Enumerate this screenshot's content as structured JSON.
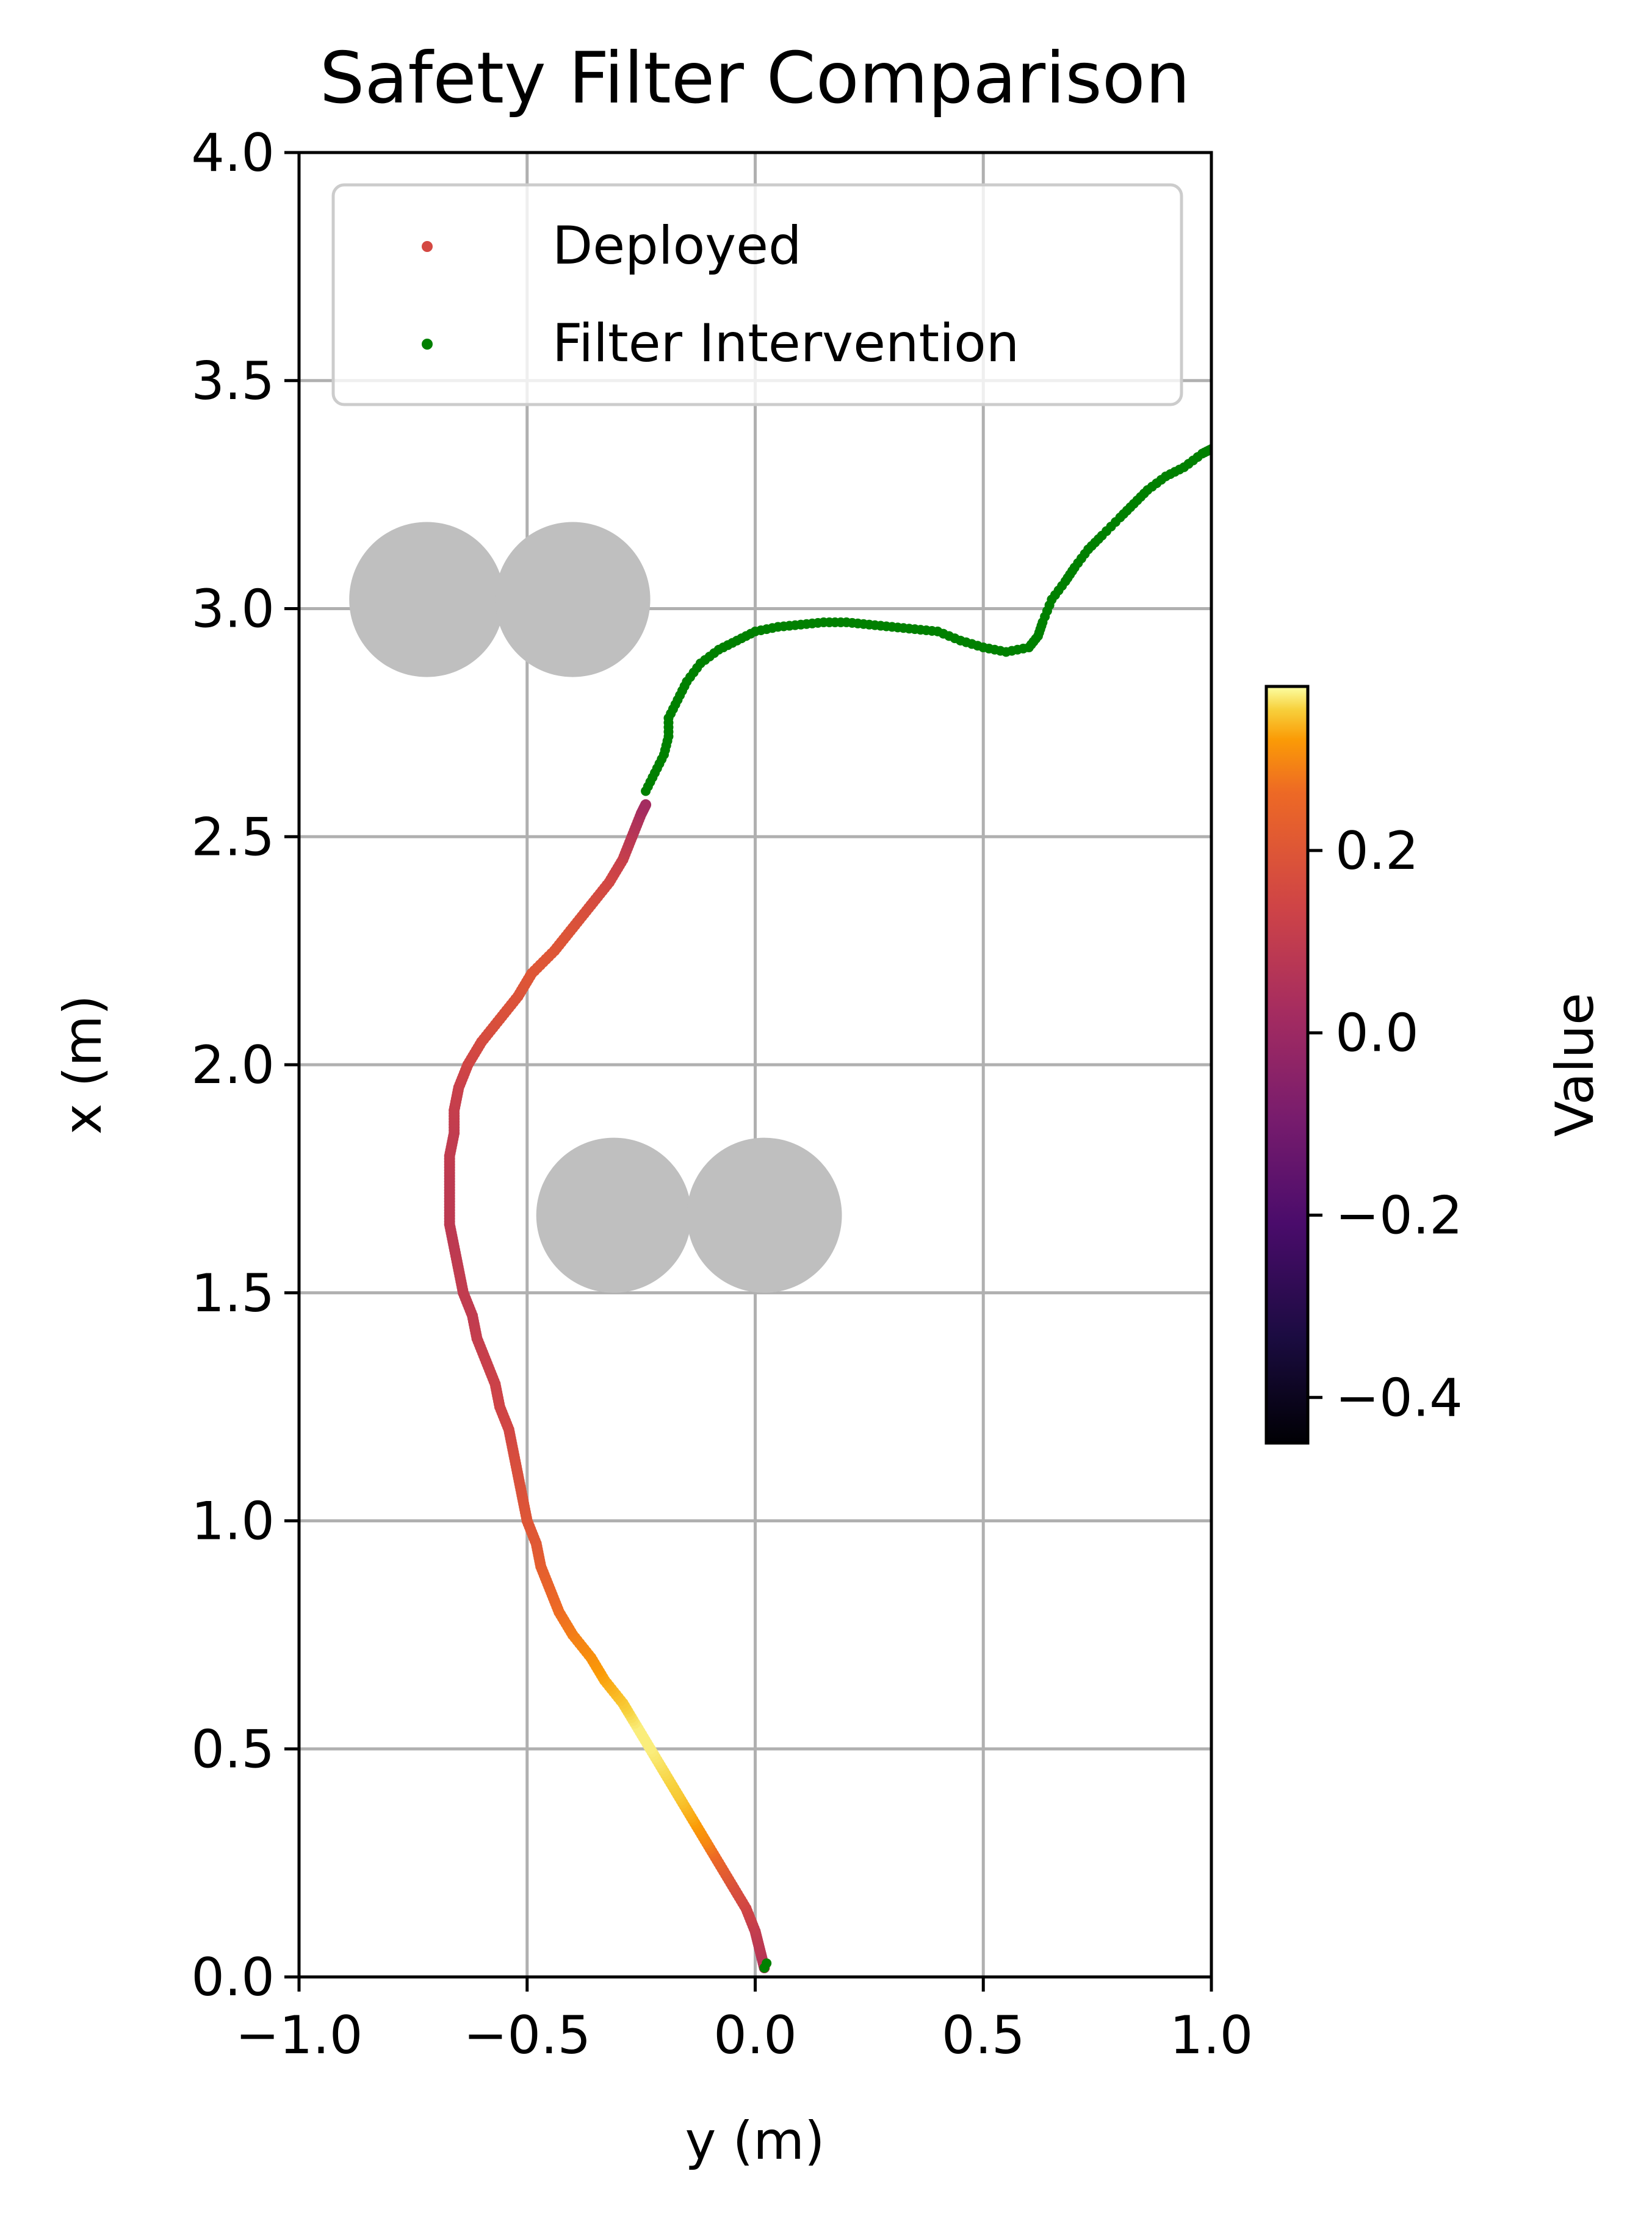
{
  "chart_data": {
    "type": "scatter",
    "title": "Safety Filter Comparison",
    "xlabel": "y (m)",
    "ylabel": "x (m)",
    "xlim": [
      -1.0,
      1.0
    ],
    "ylim": [
      0.0,
      4.0
    ],
    "x_ticks": [
      -1.0,
      -0.5,
      0.0,
      0.5,
      1.0
    ],
    "x_tick_labels": [
      "−1.0",
      "−0.5",
      "0.0",
      "0.5",
      "1.0"
    ],
    "y_ticks": [
      0.0,
      0.5,
      1.0,
      1.5,
      2.0,
      2.5,
      3.0,
      3.5,
      4.0
    ],
    "y_tick_labels": [
      "0.0",
      "0.5",
      "1.0",
      "1.5",
      "2.0",
      "2.5",
      "3.0",
      "3.5",
      "4.0"
    ],
    "grid": true,
    "legend_position": "top",
    "legend": [
      {
        "label": "Deployed",
        "color": "#d44842"
      },
      {
        "label": "Filter Intervention",
        "color": "#008000"
      }
    ],
    "obstacles": {
      "color": "#bfbfbf",
      "radius": 0.17,
      "centers": [
        [
          -0.72,
          3.02
        ],
        [
          -0.4,
          3.02
        ],
        [
          -0.31,
          1.67
        ],
        [
          0.02,
          1.67
        ]
      ]
    },
    "series": [
      {
        "name": "Deployed",
        "colormap": "inferno",
        "points": [
          [
            0.02,
            0.02,
            0.05
          ],
          [
            0.01,
            0.06,
            0.08
          ],
          [
            0.0,
            0.1,
            0.1
          ],
          [
            -0.02,
            0.15,
            0.14
          ],
          [
            -0.05,
            0.2,
            0.18
          ],
          [
            -0.08,
            0.25,
            0.24
          ],
          [
            -0.11,
            0.3,
            0.3
          ],
          [
            -0.14,
            0.35,
            0.33
          ],
          [
            -0.17,
            0.4,
            0.35
          ],
          [
            -0.2,
            0.45,
            0.36
          ],
          [
            -0.23,
            0.5,
            0.37
          ],
          [
            -0.26,
            0.55,
            0.37
          ],
          [
            -0.29,
            0.6,
            0.35
          ],
          [
            -0.33,
            0.65,
            0.33
          ],
          [
            -0.36,
            0.7,
            0.31
          ],
          [
            -0.4,
            0.75,
            0.29
          ],
          [
            -0.43,
            0.8,
            0.27
          ],
          [
            -0.45,
            0.85,
            0.25
          ],
          [
            -0.47,
            0.9,
            0.23
          ],
          [
            -0.48,
            0.95,
            0.21
          ],
          [
            -0.5,
            1.0,
            0.2
          ],
          [
            -0.51,
            1.05,
            0.19
          ],
          [
            -0.52,
            1.1,
            0.18
          ],
          [
            -0.53,
            1.15,
            0.17
          ],
          [
            -0.54,
            1.2,
            0.15
          ],
          [
            -0.56,
            1.25,
            0.14
          ],
          [
            -0.57,
            1.3,
            0.13
          ],
          [
            -0.59,
            1.35,
            0.12
          ],
          [
            -0.61,
            1.4,
            0.11
          ],
          [
            -0.62,
            1.45,
            0.1
          ],
          [
            -0.64,
            1.5,
            0.1
          ],
          [
            -0.65,
            1.55,
            0.1
          ],
          [
            -0.66,
            1.6,
            0.09
          ],
          [
            -0.67,
            1.65,
            0.09
          ],
          [
            -0.67,
            1.7,
            0.09
          ],
          [
            -0.67,
            1.75,
            0.09
          ],
          [
            -0.67,
            1.8,
            0.1
          ],
          [
            -0.66,
            1.85,
            0.1
          ],
          [
            -0.66,
            1.9,
            0.11
          ],
          [
            -0.65,
            1.95,
            0.12
          ],
          [
            -0.63,
            2.0,
            0.14
          ],
          [
            -0.6,
            2.05,
            0.16
          ],
          [
            -0.56,
            2.1,
            0.18
          ],
          [
            -0.52,
            2.15,
            0.19
          ],
          [
            -0.49,
            2.2,
            0.2
          ],
          [
            -0.44,
            2.25,
            0.2
          ],
          [
            -0.4,
            2.3,
            0.19
          ],
          [
            -0.36,
            2.35,
            0.17
          ],
          [
            -0.32,
            2.4,
            0.15
          ],
          [
            -0.29,
            2.45,
            0.12
          ],
          [
            -0.27,
            2.5,
            0.08
          ],
          [
            -0.25,
            2.55,
            0.04
          ],
          [
            -0.24,
            2.57,
            0.02
          ]
        ]
      },
      {
        "name": "Filter Intervention",
        "color": "#008000",
        "points": [
          [
            -0.24,
            2.6
          ],
          [
            -0.22,
            2.64
          ],
          [
            -0.2,
            2.68
          ],
          [
            -0.19,
            2.72
          ],
          [
            -0.19,
            2.76
          ],
          [
            -0.17,
            2.8
          ],
          [
            -0.15,
            2.84
          ],
          [
            -0.12,
            2.88
          ],
          [
            -0.08,
            2.91
          ],
          [
            -0.04,
            2.93
          ],
          [
            0.0,
            2.95
          ],
          [
            0.05,
            2.96
          ],
          [
            0.1,
            2.965
          ],
          [
            0.15,
            2.97
          ],
          [
            0.2,
            2.97
          ],
          [
            0.25,
            2.965
          ],
          [
            0.3,
            2.96
          ],
          [
            0.35,
            2.955
          ],
          [
            0.4,
            2.95
          ],
          [
            0.45,
            2.93
          ],
          [
            0.5,
            2.915
          ],
          [
            0.55,
            2.905
          ],
          [
            0.6,
            2.915
          ],
          [
            0.62,
            2.94
          ],
          [
            0.63,
            2.97
          ],
          [
            0.65,
            3.02
          ],
          [
            0.68,
            3.06
          ],
          [
            0.7,
            3.09
          ],
          [
            0.73,
            3.13
          ],
          [
            0.76,
            3.16
          ],
          [
            0.8,
            3.2
          ],
          [
            0.83,
            3.23
          ],
          [
            0.86,
            3.26
          ],
          [
            0.9,
            3.29
          ],
          [
            0.94,
            3.31
          ],
          [
            0.98,
            3.34
          ],
          [
            1.0,
            3.35
          ],
          [
            0.025,
            0.03
          ],
          [
            0.02,
            0.02
          ]
        ]
      }
    ],
    "colorbar": {
      "label": "Value",
      "colormap": "inferno",
      "vmin": -0.45,
      "vmax": 0.38,
      "ticks": [
        0.2,
        0.0,
        -0.2,
        -0.4
      ],
      "tick_labels": [
        "0.2",
        "0.0",
        "−0.2",
        "−0.4"
      ]
    }
  }
}
